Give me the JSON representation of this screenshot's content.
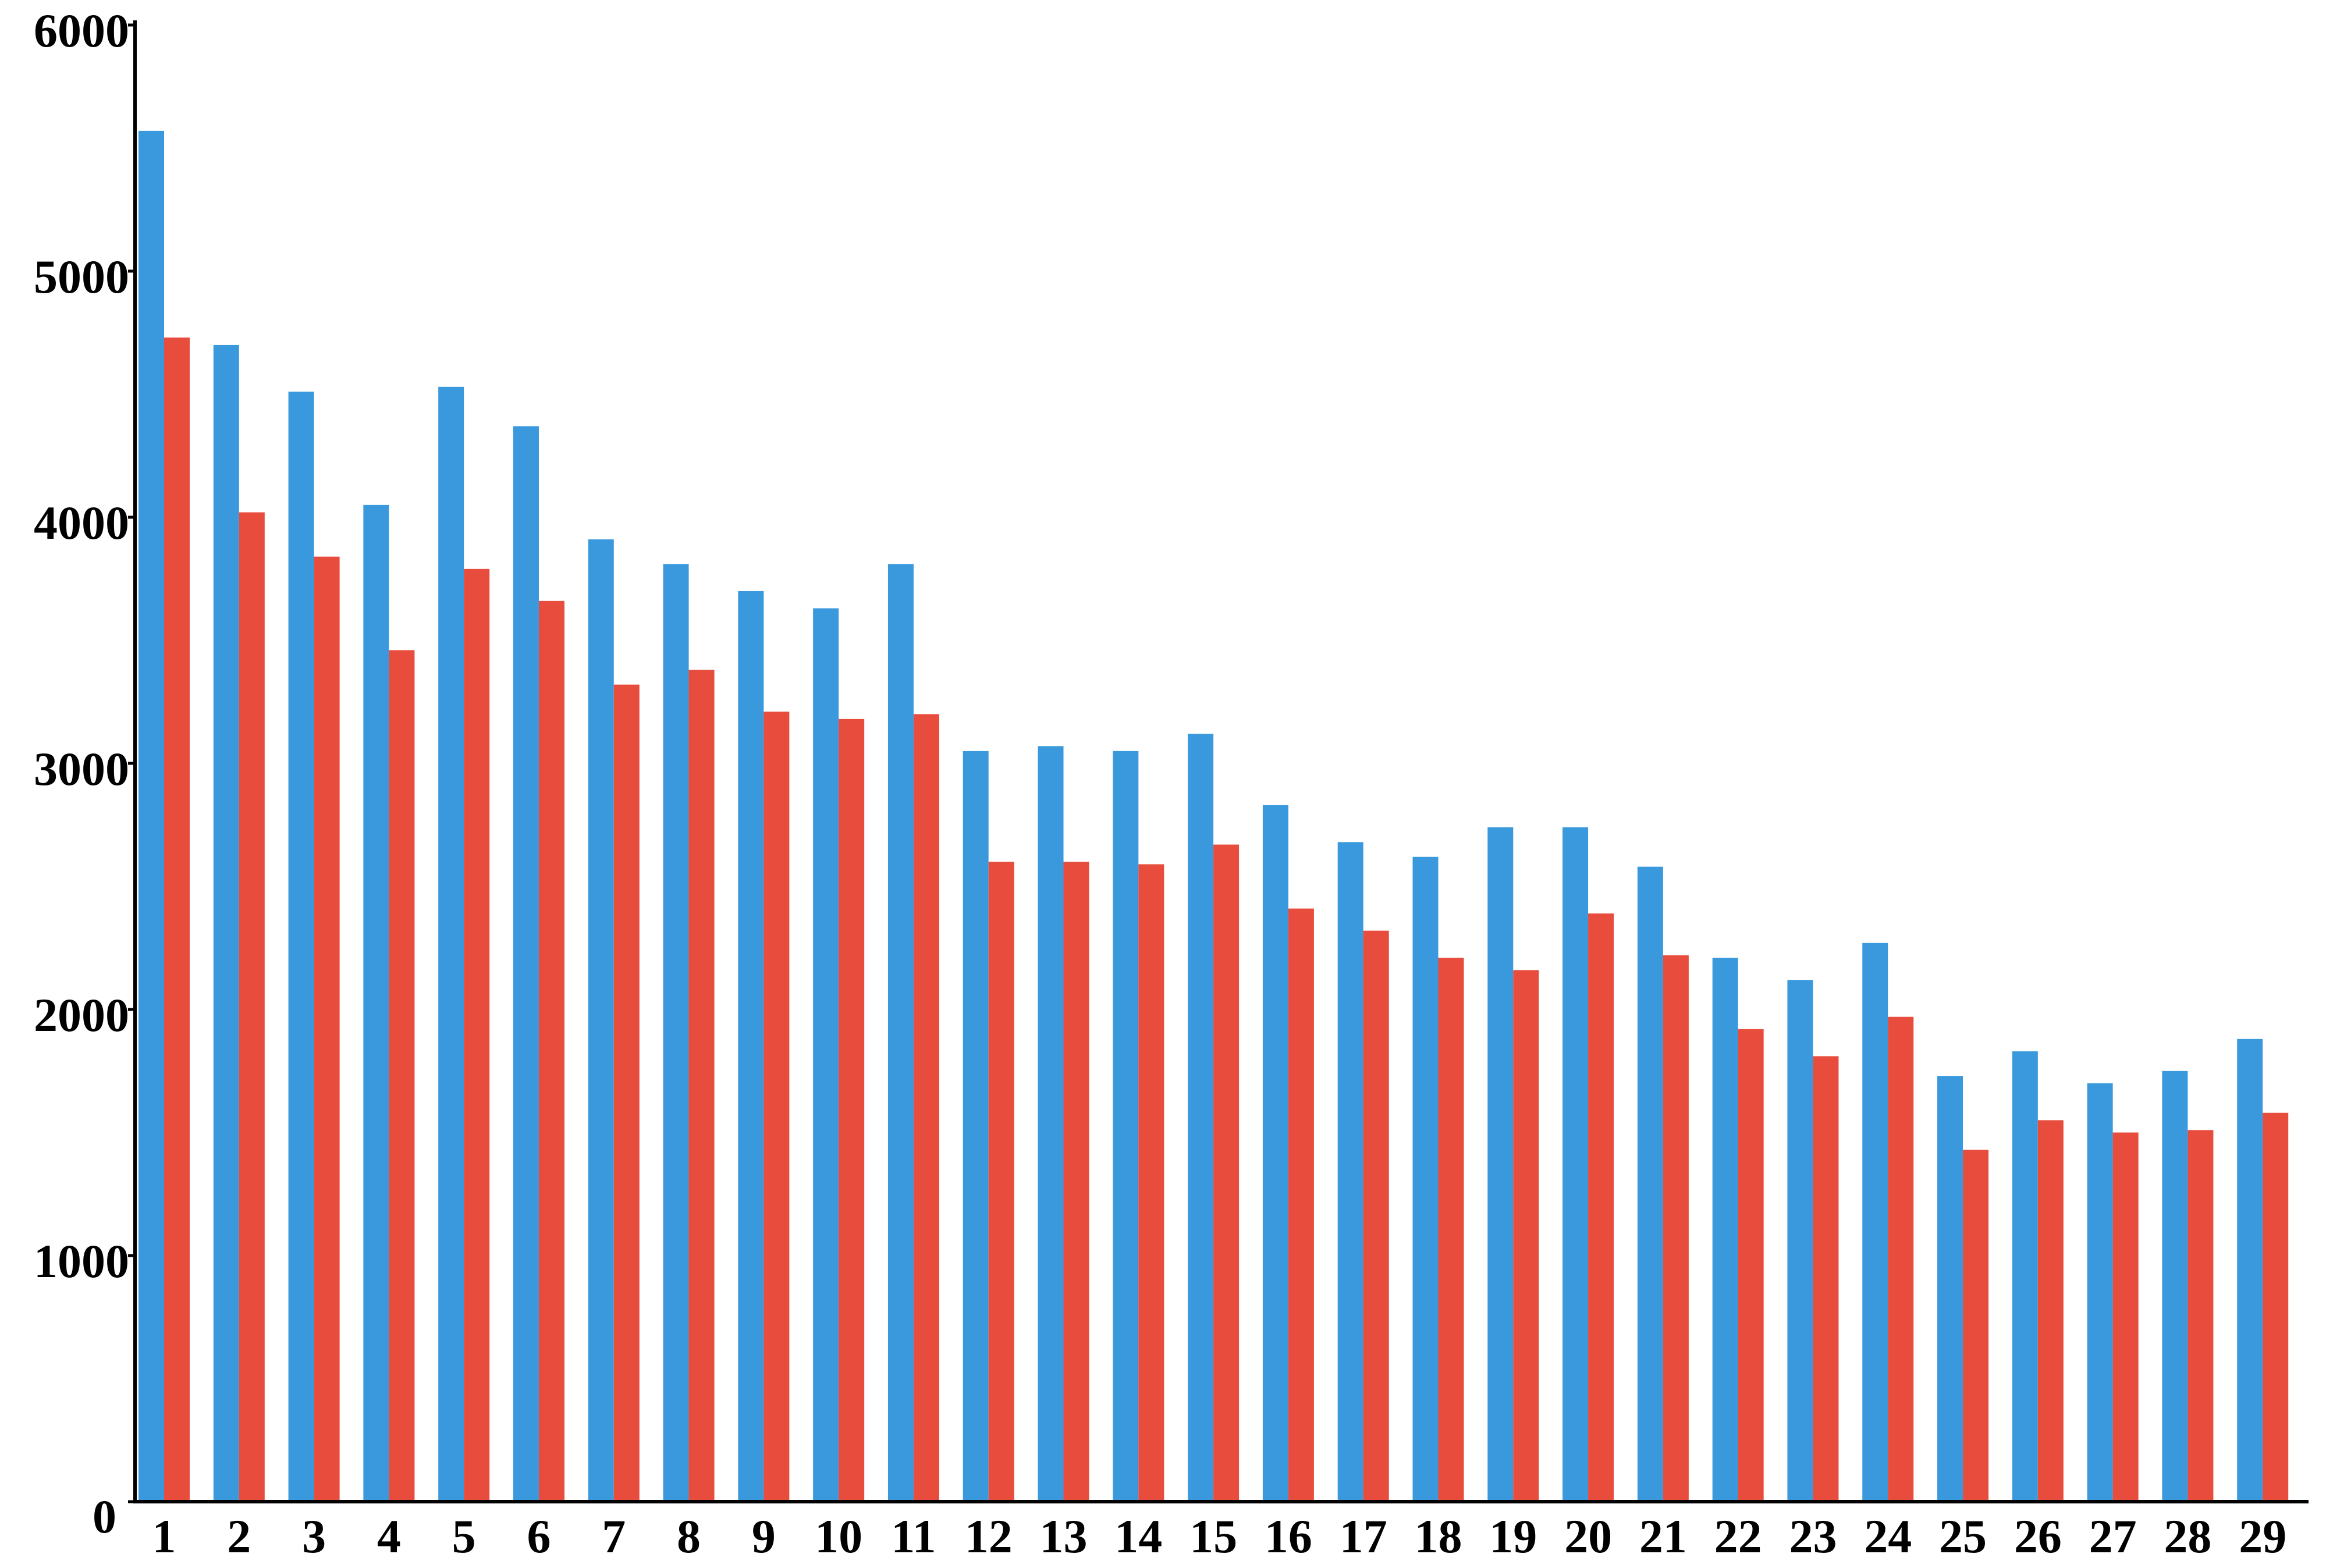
{
  "chart_data": {
    "type": "bar",
    "categories": [
      1,
      2,
      3,
      4,
      5,
      6,
      7,
      8,
      9,
      10,
      11,
      12,
      13,
      14,
      15,
      16,
      17,
      18,
      19,
      20,
      21,
      22,
      23,
      24,
      25,
      26,
      27,
      28,
      29
    ],
    "series": [
      {
        "color": "#3a99dd",
        "values": [
          5570,
          4700,
          4510,
          4050,
          4530,
          4370,
          3910,
          3810,
          3700,
          3630,
          3810,
          3050,
          3070,
          3050,
          3120,
          2830,
          2680,
          2620,
          2740,
          2740,
          2580,
          2210,
          2120,
          2270,
          1730,
          1830,
          1700,
          1750,
          1880
        ]
      },
      {
        "color": "#e74c3c",
        "values": [
          4730,
          4020,
          3840,
          3460,
          3790,
          3660,
          3320,
          3380,
          3210,
          3180,
          3200,
          2600,
          2600,
          2590,
          2670,
          2410,
          2320,
          2210,
          2160,
          2390,
          2220,
          1920,
          1810,
          1970,
          1430,
          1550,
          1500,
          1510,
          1580
        ]
      }
    ],
    "ylim": [
      0,
      6000
    ],
    "yticks": [
      0,
      1000,
      2000,
      3000,
      4000,
      5000,
      6000
    ],
    "grid": false
  }
}
